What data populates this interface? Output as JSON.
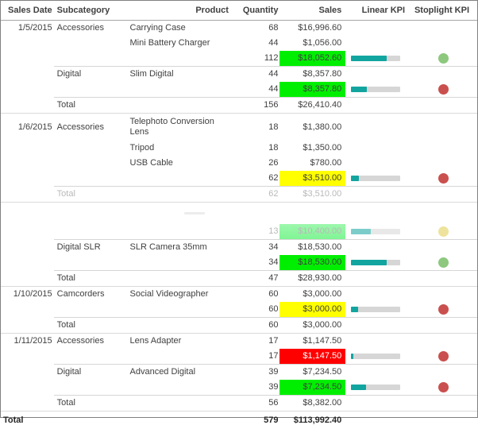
{
  "colors": {
    "kpi_green": "#00ef00",
    "kpi_yellow": "#ffff00",
    "kpi_red": "#fe0000",
    "bar_fill": "#12a5a0",
    "bar_track": "#d6d6d6",
    "light_green": "#8dc87e",
    "light_red": "#c9504e",
    "light_yellow": "#eadc84"
  },
  "table": {
    "columns": [
      "Sales Date",
      "Subcategory",
      "Product",
      "Quantity",
      "Sales",
      "Linear KPI",
      "Stoplight KPI"
    ],
    "rows": [
      {
        "type": "detail",
        "date": "1/5/2015",
        "subcategory": "Accessories",
        "product": "Carrying Case",
        "quantity": "68",
        "sales": "$16,996.60"
      },
      {
        "type": "detail",
        "product": "Mini Battery Charger",
        "quantity": "44",
        "sales": "$1,056.00"
      },
      {
        "type": "subtotal",
        "quantity": "112",
        "sales": "$18,052.60",
        "sales_bg": "green",
        "kpi_fill": 0.72,
        "stoplight": "green"
      },
      {
        "type": "detail",
        "subcategory": "Digital",
        "product": "Slim Digital",
        "quantity": "44",
        "sales": "$8,357.80",
        "sep": "subcat"
      },
      {
        "type": "subtotal",
        "quantity": "44",
        "sales": "$8,357.80",
        "sales_bg": "green",
        "kpi_fill": 0.32,
        "stoplight": "red"
      },
      {
        "type": "total",
        "label": "Total",
        "quantity": "156",
        "sales": "$26,410.40",
        "sep": "subcat"
      },
      {
        "type": "detail",
        "date": "1/6/2015",
        "subcategory": "Accessories",
        "product": "Telephoto Conversion Lens",
        "quantity": "18",
        "sales": "$1,380.00",
        "sep": "date",
        "wrap": true
      },
      {
        "type": "detail",
        "product": "Tripod",
        "quantity": "18",
        "sales": "$1,350.00"
      },
      {
        "type": "detail",
        "product": "USB Cable",
        "quantity": "26",
        "sales": "$780.00"
      },
      {
        "type": "subtotal",
        "quantity": "62",
        "sales": "$3,510.00",
        "sales_bg": "yellow",
        "kpi_fill": 0.15,
        "stoplight": "red"
      },
      {
        "type": "total",
        "label": "Total",
        "quantity": "62",
        "sales": "$3,510.00",
        "sep": "subcat",
        "faded": true
      },
      {
        "type": "ghost",
        "sep": "date"
      },
      {
        "type": "subtotal",
        "quantity": "13",
        "sales": "$10,400.00",
        "sales_bg": "green-faded",
        "kpi_fill": 0.4,
        "stoplight": "yellow",
        "faded": true
      },
      {
        "type": "detail",
        "subcategory": "Digital SLR",
        "product": "SLR Camera 35mm",
        "quantity": "34",
        "sales": "$18,530.00",
        "sep": "subcat"
      },
      {
        "type": "subtotal",
        "quantity": "34",
        "sales": "$18,530.00",
        "sales_bg": "green",
        "kpi_fill": 0.72,
        "stoplight": "green"
      },
      {
        "type": "total",
        "label": "Total",
        "quantity": "47",
        "sales": "$28,930.00",
        "sep": "subcat"
      },
      {
        "type": "detail",
        "date": "1/10/2015",
        "subcategory": "Camcorders",
        "product": "Social Videographer",
        "quantity": "60",
        "sales": "$3,000.00",
        "sep": "date"
      },
      {
        "type": "subtotal",
        "quantity": "60",
        "sales": "$3,000.00",
        "sales_bg": "yellow",
        "kpi_fill": 0.14,
        "stoplight": "red"
      },
      {
        "type": "total",
        "label": "Total",
        "quantity": "60",
        "sales": "$3,000.00",
        "sep": "subcat"
      },
      {
        "type": "detail",
        "date": "1/11/2015",
        "subcategory": "Accessories",
        "product": "Lens Adapter",
        "quantity": "17",
        "sales": "$1,147.50",
        "sep": "date"
      },
      {
        "type": "subtotal",
        "quantity": "17",
        "sales": "$1,147.50",
        "sales_bg": "red",
        "kpi_fill": 0.05,
        "stoplight": "red"
      },
      {
        "type": "detail",
        "subcategory": "Digital",
        "product": "Advanced Digital",
        "quantity": "39",
        "sales": "$7,234.50",
        "sep": "subcat"
      },
      {
        "type": "subtotal",
        "quantity": "39",
        "sales": "$7,234.50",
        "sales_bg": "green",
        "kpi_fill": 0.3,
        "stoplight": "red"
      },
      {
        "type": "total",
        "label": "Total",
        "quantity": "56",
        "sales": "$8,382.00",
        "sep": "subcat"
      },
      {
        "type": "grand_total",
        "label": "Total",
        "quantity": "579",
        "sales": "$113,992.40",
        "sep": "grand"
      }
    ]
  }
}
